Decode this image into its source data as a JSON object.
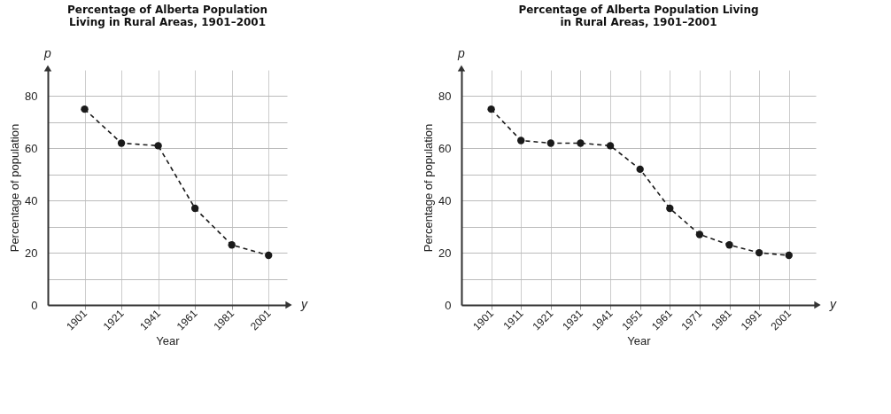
{
  "chart_data": [
    {
      "type": "line",
      "title": "Percentage of Alberta Population\nLiving in Rural Areas, 1901–2001",
      "xlabel": "Year",
      "ylabel": "Percentage of population",
      "annotations": [
        "p",
        "y"
      ],
      "x": [
        1901,
        1921,
        1941,
        1961,
        1981,
        2001
      ],
      "series": [
        {
          "color": "#1a1a1a",
          "values": [
            75,
            62,
            61,
            37,
            23,
            19
          ]
        }
      ],
      "xlim": [
        1881,
        2011
      ],
      "xticks": [
        1901,
        1921,
        1941,
        1961,
        1981,
        2001
      ],
      "ylim": [
        0,
        90
      ],
      "yticks": [
        0,
        {
          "value": 10,
          "label": null
        },
        20,
        {
          "value": 30,
          "label": null
        },
        40,
        {
          "value": 50,
          "label": null
        },
        60,
        {
          "value": 70,
          "label": null
        },
        80
      ],
      "grid": true,
      "marker": "circle",
      "line_style": "dashed"
    },
    {
      "type": "line",
      "title": "Percentage of Alberta Population Living\nin Rural Areas, 1901–2001",
      "xlabel": "Year",
      "ylabel": "Percentage of population",
      "annotations": [
        "p",
        "y"
      ],
      "x": [
        1901,
        1911,
        1921,
        1931,
        1941,
        1951,
        1961,
        1971,
        1981,
        1991,
        2001
      ],
      "series": [
        {
          "color": "#1a1a1a",
          "values": [
            75,
            63,
            62,
            62,
            61,
            52,
            37,
            27,
            23,
            20,
            19
          ]
        }
      ],
      "xlim": [
        1891,
        2010
      ],
      "xticks": [
        1901,
        1911,
        1921,
        1931,
        1941,
        1951,
        1961,
        1971,
        1981,
        1991,
        2001
      ],
      "ylim": [
        0,
        90
      ],
      "yticks": [
        0,
        {
          "value": 10,
          "label": null
        },
        20,
        {
          "value": 30,
          "label": null
        },
        40,
        {
          "value": 50,
          "label": null
        },
        60,
        {
          "value": 70,
          "label": null
        },
        80
      ],
      "grid": true,
      "marker": "circle",
      "line_style": "dashed"
    }
  ]
}
